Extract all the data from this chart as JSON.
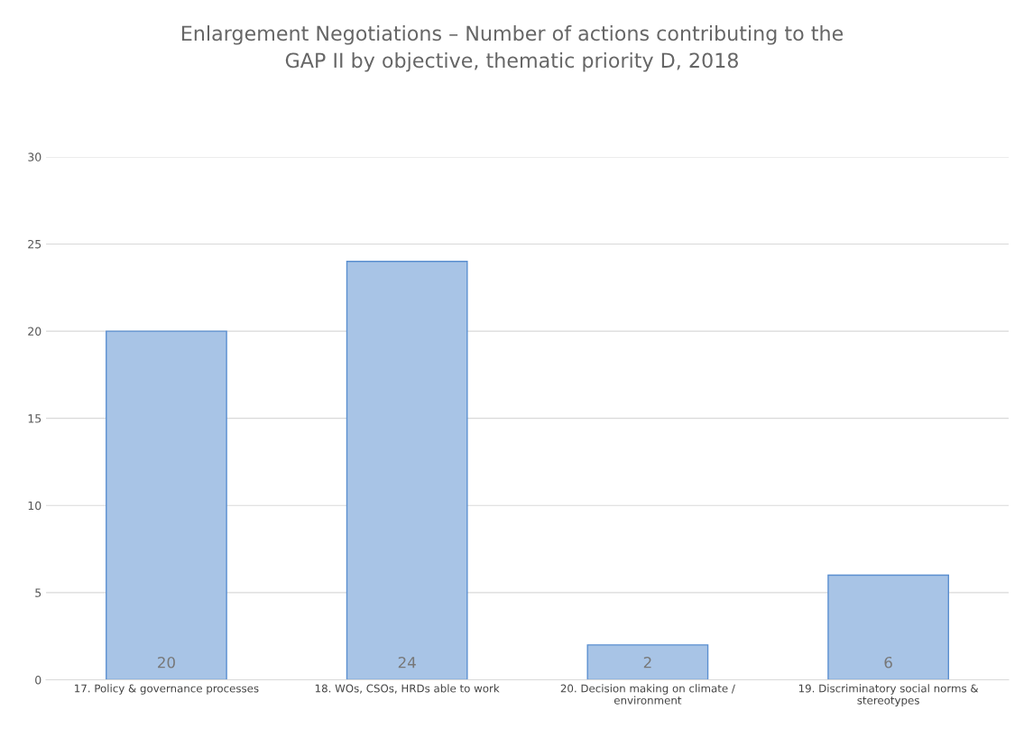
{
  "chart_data": {
    "type": "bar",
    "title": "Enlargement Negotiations – Number of actions contributing to the\nGAP II by objective, thematic priority D, 2018",
    "categories": [
      "17. Policy & governance processes",
      "18. WOs, CSOs, HRDs able to work",
      "20. Decision making on climate / environment",
      "19. Discriminatory social norms & stereotypes"
    ],
    "values": [
      20,
      24,
      2,
      6
    ],
    "color": "#a8c4e6",
    "ylim": [
      0,
      30
    ],
    "yticks": [
      0,
      5,
      10,
      15,
      20,
      25,
      30
    ],
    "grid": "y",
    "data_labels": true
  }
}
